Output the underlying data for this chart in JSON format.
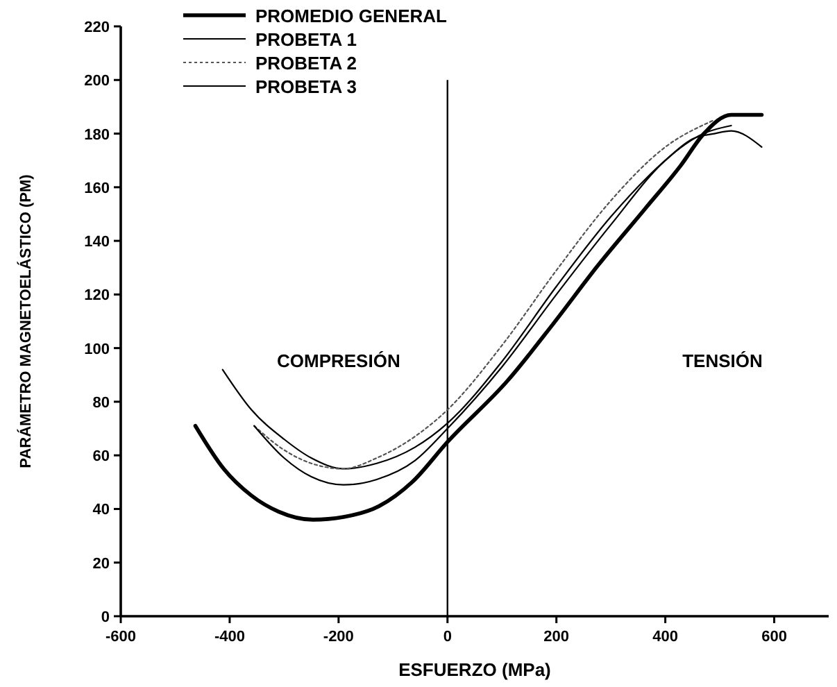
{
  "chart_data": {
    "type": "line",
    "xlabel": "ESFUERZO (MPa)",
    "ylabel": "PARÁMETRO MAGNETOELÁSTICO (PM)",
    "xlim": [
      -600,
      700
    ],
    "xticks": [
      -600,
      -400,
      -200,
      0,
      200,
      400,
      600
    ],
    "ylim": [
      0,
      220
    ],
    "yticks": [
      0,
      20,
      40,
      60,
      80,
      100,
      120,
      140,
      160,
      180,
      200,
      220
    ],
    "legend": "top left",
    "grid": false,
    "ref_lines": [
      {
        "axis": "x",
        "value": 0,
        "color": "#000000"
      }
    ],
    "annotations": [
      "COMPRESIÓN",
      "TENSIÓN"
    ],
    "series": [
      {
        "name": "PROMEDIO GENERAL",
        "color": "#000000",
        "line_style": "solid",
        "x": [
          -463,
          -411,
          -360,
          -310,
          -247,
          -191,
          -126,
          -65,
          0,
          111,
          194,
          277,
          363,
          428,
          471,
          521,
          577
        ],
        "values": [
          71,
          55,
          45,
          39,
          36,
          37,
          41,
          50,
          65,
          88,
          109,
          131,
          152,
          168,
          180,
          187,
          187
        ]
      },
      {
        "name": "PROBETA 1",
        "color": "#000000",
        "line_style": "solid",
        "x": [
          -413,
          -360,
          -300,
          -250,
          -191,
          -130,
          -60,
          0,
          100,
          200,
          300,
          400,
          450,
          490,
          521,
          577
        ],
        "values": [
          92,
          77,
          66,
          59,
          55,
          57,
          63,
          72,
          95,
          123,
          149,
          170,
          178,
          180,
          181,
          175
        ]
      },
      {
        "name": "PROBETA 2",
        "color": "#555555",
        "line_style": "dotted",
        "x": [
          -355,
          -300,
          -250,
          -191,
          -130,
          -60,
          0,
          100,
          200,
          300,
          400,
          489
        ],
        "values": [
          71,
          62,
          57,
          55,
          59,
          67,
          77,
          101,
          129,
          155,
          175,
          185
        ]
      },
      {
        "name": "PROBETA 3",
        "color": "#000000",
        "line_style": "solid",
        "x": [
          -355,
          -300,
          -250,
          -191,
          -130,
          -60,
          0,
          100,
          200,
          300,
          400,
          470,
          521
        ],
        "values": [
          71,
          59,
          52,
          49,
          51,
          58,
          70,
          93,
          120,
          146,
          170,
          180,
          183
        ]
      }
    ]
  }
}
